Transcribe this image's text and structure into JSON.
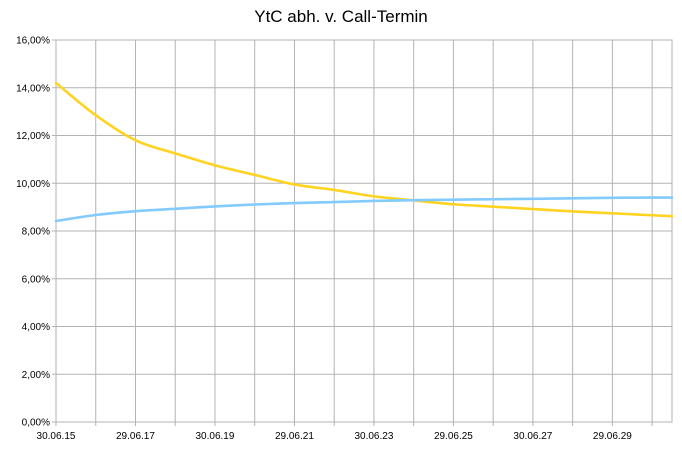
{
  "chart_data": {
    "type": "line",
    "title": "YtC abh. v. Call-Termin",
    "xlabel": "",
    "ylabel": "",
    "ylim": [
      0,
      0.16
    ],
    "y_ticks": [
      0,
      0.02,
      0.04,
      0.06,
      0.08,
      0.1,
      0.12,
      0.14,
      0.16
    ],
    "y_tick_labels": [
      "0,00%",
      "2,00%",
      "4,00%",
      "6,00%",
      "8,00%",
      "10,00%",
      "12,00%",
      "14,00%",
      "16,00%"
    ],
    "x_tick_labels": [
      "30.06.15",
      "29.06.17",
      "30.06.19",
      "29.06.21",
      "30.06.23",
      "29.06.25",
      "30.06.27",
      "29.06.29"
    ],
    "x_years": [
      2015,
      2016,
      2017,
      2018,
      2019,
      2020,
      2021,
      2022,
      2023,
      2024,
      2025,
      2026,
      2027,
      2028,
      2029,
      2030,
      2030.5
    ],
    "grid": true,
    "legend": "none",
    "series": [
      {
        "color": "#ffd320",
        "values": [
          0.142,
          0.1285,
          0.118,
          0.1125,
          0.1075,
          0.1035,
          0.0995,
          0.0972,
          0.0945,
          0.0928,
          0.0912,
          0.0902,
          0.0892,
          0.0882,
          0.0874,
          0.0866,
          0.0862
        ]
      },
      {
        "color": "#83caff",
        "values": [
          0.0842,
          0.0867,
          0.0883,
          0.0893,
          0.0903,
          0.0911,
          0.0917,
          0.0921,
          0.0926,
          0.0929,
          0.0931,
          0.0933,
          0.0935,
          0.0937,
          0.0939,
          0.094,
          0.094
        ]
      }
    ]
  }
}
